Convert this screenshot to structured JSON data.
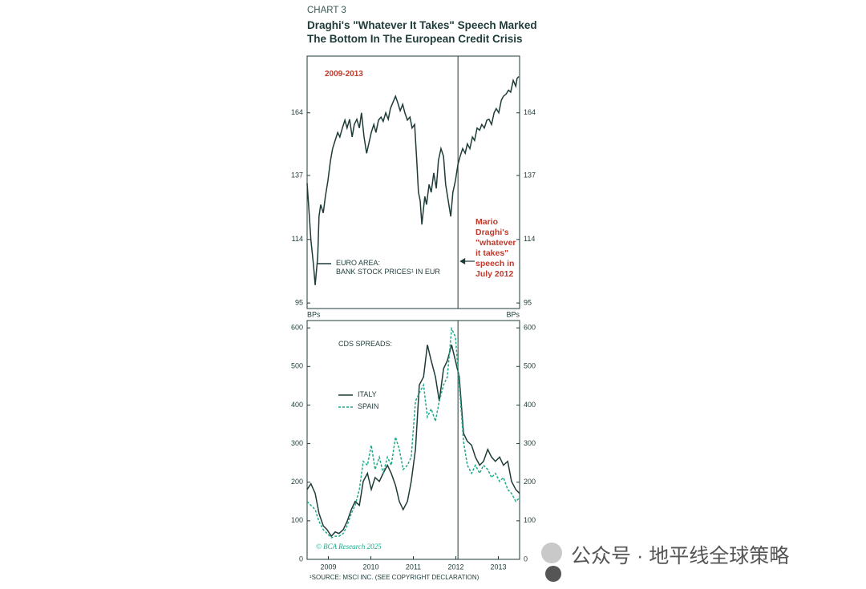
{
  "chart_label": "CHART 3",
  "title": "Draghi's \"Whatever It Takes\" Speech Marked\nThe Bottom In The European Credit Crisis",
  "event": {
    "x": 2012.55,
    "text": "Mario\nDraghi's\n\"whatever\nit takes\"\nspeech in\nJuly 2012",
    "color": "#c0392b"
  },
  "credit": "© BCA Research 2025",
  "source": "¹SOURCE: MSCI INC. (SEE COPYRIGHT DECLARATION)",
  "watermark": "公众号 · 地平线全球策略",
  "chart_data": [
    {
      "type": "line",
      "period_label": "2009-2013",
      "log_scale": true,
      "xlim": [
        2009,
        2014
      ],
      "ylim": [
        93.5,
        193
      ],
      "yticks": [
        95,
        114,
        137,
        164
      ],
      "x": [
        2009.0,
        2009.04,
        2009.09,
        2009.15,
        2009.19,
        2009.25,
        2009.28,
        2009.32,
        2009.38,
        2009.43,
        2009.49,
        2009.55,
        2009.6,
        2009.66,
        2009.72,
        2009.77,
        2009.83,
        2009.89,
        2009.94,
        2010.0,
        2010.06,
        2010.11,
        2010.17,
        2010.23,
        2010.28,
        2010.34,
        2010.4,
        2010.45,
        2010.51,
        2010.57,
        2010.62,
        2010.68,
        2010.74,
        2010.79,
        2010.85,
        2010.91,
        2010.96,
        2011.02,
        2011.08,
        2011.13,
        2011.19,
        2011.25,
        2011.3,
        2011.36,
        2011.42,
        2011.47,
        2011.53,
        2011.58,
        2011.62,
        2011.66,
        2011.7,
        2011.74,
        2011.77,
        2011.81,
        2011.87,
        2011.92,
        2011.98,
        2012.04,
        2012.09,
        2012.15,
        2012.21,
        2012.26,
        2012.32,
        2012.38,
        2012.43,
        2012.49,
        2012.55,
        2012.6,
        2012.66,
        2012.72,
        2012.77,
        2012.83,
        2012.89,
        2012.94,
        2013.0,
        2013.06,
        2013.11,
        2013.17,
        2013.23,
        2013.28,
        2013.34,
        2013.4,
        2013.45,
        2013.51,
        2013.57,
        2013.62,
        2013.68,
        2013.74,
        2013.79,
        2013.85,
        2013.91,
        2013.94,
        2013.98
      ],
      "series": [
        {
          "name": "EURO AREA:\nBANK STOCK PRICES¹ IN EUR",
          "color": "#1e3b38",
          "style": "solid",
          "values": [
            134,
            124.7,
            113.7,
            106,
            100,
            108.6,
            121.8,
            126,
            123,
            129,
            135,
            143,
            148,
            151.5,
            155,
            153,
            157,
            160.6,
            157,
            161,
            153,
            158.6,
            161,
            157,
            164,
            153,
            146,
            150,
            155,
            158.6,
            155,
            160.6,
            162,
            160,
            164,
            161,
            166,
            169,
            172,
            169,
            165,
            168,
            164,
            160.6,
            162,
            157,
            158.6,
            143,
            130.5,
            127.5,
            119,
            124.7,
            129,
            126,
            133.5,
            130.5,
            138,
            132,
            143,
            148,
            144.7,
            133.5,
            127.5,
            121.8,
            130.5,
            135,
            141.5,
            144.7,
            148,
            146,
            150,
            148,
            153,
            151.5,
            157,
            156,
            158.6,
            157,
            160.6,
            161,
            158.6,
            164,
            166,
            164,
            170,
            172,
            173,
            175,
            174,
            180,
            177,
            181,
            182
          ]
        }
      ]
    },
    {
      "type": "line",
      "subtitle": "CDS SPREADS:",
      "y_label": "BPs",
      "xlim": [
        2009,
        2014
      ],
      "ylim": [
        0,
        619
      ],
      "yticks": [
        0,
        100,
        200,
        300,
        400,
        500,
        600
      ],
      "xticks": [
        {
          "value": 2009.5,
          "label": "2009"
        },
        {
          "value": 2010.5,
          "label": "2010"
        },
        {
          "value": 2011.5,
          "label": "2011"
        },
        {
          "value": 2012.5,
          "label": "2012"
        },
        {
          "value": 2013.5,
          "label": "2013"
        }
      ],
      "x": [
        2009.0,
        2009.09,
        2009.19,
        2009.28,
        2009.38,
        2009.47,
        2009.57,
        2009.66,
        2009.75,
        2009.85,
        2009.94,
        2010.04,
        2010.13,
        2010.23,
        2010.32,
        2010.42,
        2010.51,
        2010.6,
        2010.7,
        2010.79,
        2010.89,
        2010.98,
        2011.08,
        2011.17,
        2011.26,
        2011.36,
        2011.45,
        2011.55,
        2011.64,
        2011.74,
        2011.83,
        2011.92,
        2012.02,
        2012.11,
        2012.21,
        2012.3,
        2012.4,
        2012.49,
        2012.58,
        2012.68,
        2012.77,
        2012.87,
        2012.96,
        2013.06,
        2013.15,
        2013.25,
        2013.34,
        2013.43,
        2013.53,
        2013.62,
        2013.72,
        2013.81,
        2013.91,
        2014.0
      ],
      "series": [
        {
          "name": "ITALY",
          "color": "#1e3b38",
          "style": "solid",
          "values": [
            181,
            196,
            171,
            119,
            87,
            77,
            60,
            71,
            67,
            77,
            98,
            129,
            150,
            140,
            202,
            223,
            181,
            212,
            202,
            223,
            244,
            223,
            192,
            150,
            129,
            150,
            202,
            285,
            452,
            473,
            556,
            515,
            473,
            410,
            494,
            515,
            556,
            515,
            473,
            327,
            306,
            296,
            265,
            244,
            254,
            285,
            265,
            254,
            265,
            244,
            254,
            202,
            181,
            171
          ]
        },
        {
          "name": "SPAIN",
          "color": "#1fa88a",
          "style": "dashed",
          "values": [
            150,
            140,
            129,
            98,
            77,
            67,
            56,
            60,
            60,
            67,
            87,
            119,
            140,
            181,
            254,
            244,
            296,
            233,
            265,
            223,
            265,
            244,
            317,
            285,
            233,
            244,
            265,
            410,
            431,
            452,
            369,
            390,
            358,
            410,
            452,
            473,
            598,
            577,
            452,
            306,
            244,
            223,
            244,
            223,
            244,
            233,
            212,
            223,
            202,
            212,
            181,
            171,
            150,
            160
          ]
        }
      ]
    }
  ]
}
